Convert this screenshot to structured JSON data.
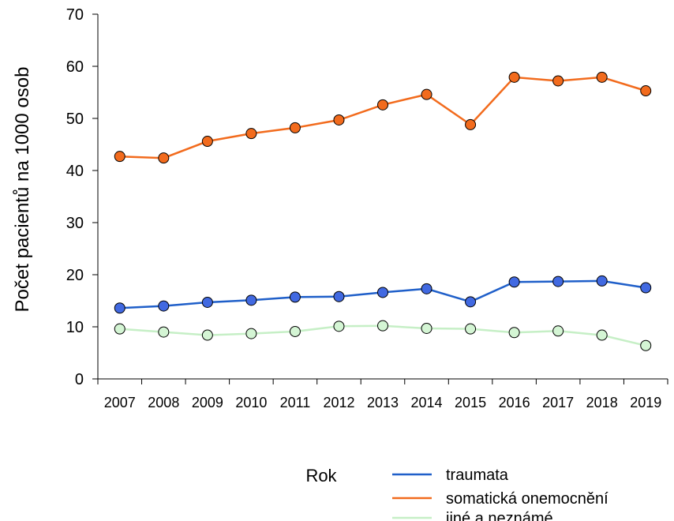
{
  "chart_data": {
    "type": "line",
    "ylabel": "Počet pacientů na 1000 osob",
    "xlabel": "Rok",
    "ylim": [
      0,
      70
    ],
    "yticks": [
      0,
      10,
      20,
      30,
      40,
      50,
      60,
      70
    ],
    "grid": false,
    "legend_position": "bottom-right",
    "categories": [
      "2007",
      "2008",
      "2009",
      "2010",
      "2011",
      "2012",
      "2013",
      "2014",
      "2015",
      "2016",
      "2017",
      "2018",
      "2019"
    ],
    "series": [
      {
        "name": "traumata",
        "line_color": "#1f5fc9",
        "marker_color": "#4169e1",
        "values": [
          13.6,
          14.0,
          14.7,
          15.1,
          15.7,
          15.8,
          16.6,
          17.3,
          14.8,
          18.6,
          18.7,
          18.8,
          17.5
        ]
      },
      {
        "name": "somatická onemocnění",
        "line_color": "#f26b1d",
        "marker_color": "#f26b1d",
        "values": [
          42.7,
          42.4,
          45.6,
          47.1,
          48.2,
          49.7,
          52.6,
          54.6,
          48.8,
          57.9,
          57.2,
          57.9,
          55.3
        ]
      },
      {
        "name": "jiné a neznámé",
        "line_color": "#c6efc6",
        "marker_color": "#d4f5d4",
        "values": [
          9.6,
          9.0,
          8.4,
          8.7,
          9.1,
          10.1,
          10.2,
          9.7,
          9.6,
          8.9,
          9.2,
          8.4,
          6.4
        ]
      }
    ]
  }
}
